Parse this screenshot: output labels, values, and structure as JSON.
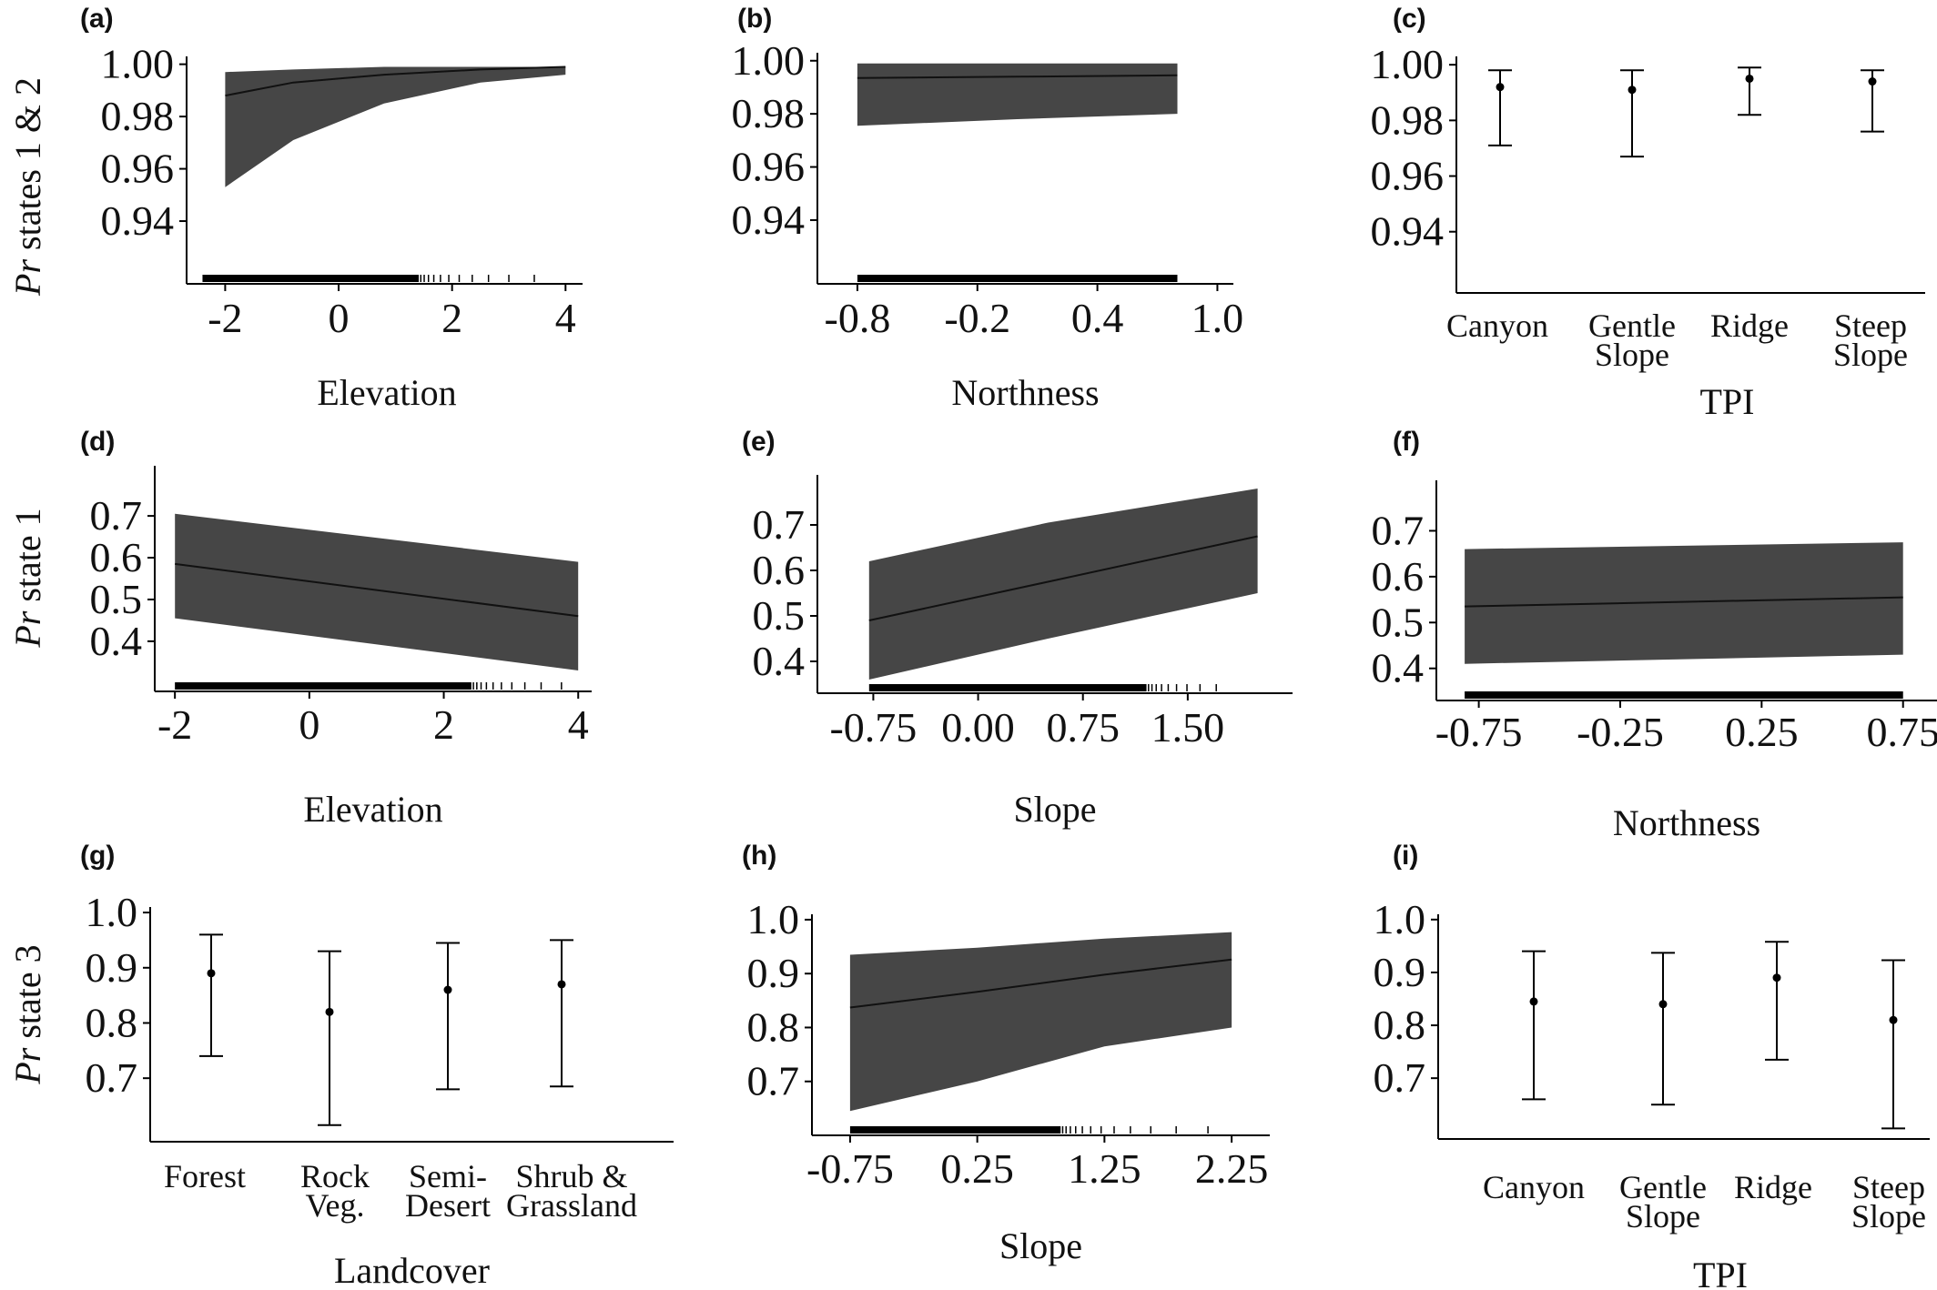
{
  "figure": {
    "row_ylabels": [
      {
        "italic": "Pr",
        "rest": " states 1 & 2"
      },
      {
        "italic": "Pr",
        "rest": " state 1"
      },
      {
        "italic": "Pr",
        "rest": " state 3"
      }
    ]
  },
  "chart_data": [
    {
      "panel": "(a)",
      "type": "line",
      "xlabel": "Elevation",
      "xticks": [
        -2,
        0,
        2,
        4
      ],
      "xlim": [
        -2.6,
        4.3
      ],
      "yticks": [
        0.94,
        0.96,
        0.98,
        1.0
      ],
      "ytick_labels": [
        "0.94",
        "0.96",
        "0.98",
        "1.00"
      ],
      "ylim": [
        0.916,
        1.003
      ],
      "series": [
        {
          "x": [
            -2.0,
            -0.8,
            0.8,
            2.5,
            4.0
          ],
          "y": [
            0.988,
            0.993,
            0.996,
            0.998,
            0.999
          ],
          "lower": [
            0.953,
            0.971,
            0.985,
            0.993,
            0.996
          ],
          "upper": [
            0.997,
            0.998,
            0.999,
            0.999,
            0.999
          ]
        }
      ],
      "rug": {
        "range": [
          -2.4,
          3.8
        ],
        "sparse_from": 1.4
      }
    },
    {
      "panel": "(b)",
      "type": "line",
      "xlabel": "Northness",
      "xticks": [
        -0.8,
        -0.2,
        0.4,
        1.0
      ],
      "xtick_labels": [
        "-0.8",
        "-0.2",
        "0.4",
        "1.0"
      ],
      "xlim": [
        -1.0,
        1.08
      ],
      "yticks": [
        0.94,
        0.96,
        0.98,
        1.0
      ],
      "ytick_labels": [
        "0.94",
        "0.96",
        "0.98",
        "1.00"
      ],
      "ylim": [
        0.916,
        1.003
      ],
      "series": [
        {
          "x": [
            -0.8,
            0.0,
            0.8
          ],
          "y": [
            0.9935,
            0.994,
            0.9945
          ],
          "lower": [
            0.9755,
            0.978,
            0.98
          ],
          "upper": [
            0.999,
            0.999,
            0.999
          ]
        }
      ],
      "rug": {
        "range": [
          -0.8,
          0.8
        ]
      }
    },
    {
      "panel": "(c)",
      "type": "errorbar",
      "xlabel": "TPI",
      "categories": [
        "Canyon",
        "Gentle Slope",
        "Ridge",
        "Steep Slope"
      ],
      "yticks": [
        0.94,
        0.96,
        0.98,
        1.0
      ],
      "ytick_labels": [
        "0.94",
        "0.96",
        "0.98",
        "1.00"
      ],
      "ylim": [
        0.918,
        1.003
      ],
      "values": [
        0.992,
        0.991,
        0.995,
        0.994
      ],
      "lower": [
        0.971,
        0.967,
        0.982,
        0.976
      ],
      "upper": [
        0.998,
        0.998,
        0.999,
        0.998
      ]
    },
    {
      "panel": "(d)",
      "type": "line",
      "xlabel": "Elevation",
      "xticks": [
        -2,
        0,
        2,
        4
      ],
      "xlim": [
        -2.3,
        4.2
      ],
      "yticks": [
        0.4,
        0.5,
        0.6,
        0.7
      ],
      "ytick_labels": [
        "0.4",
        "0.5",
        "0.6",
        "0.7"
      ],
      "ylim": [
        0.28,
        0.82
      ],
      "series": [
        {
          "x": [
            -2.0,
            4.0
          ],
          "y": [
            0.585,
            0.46
          ],
          "lower": [
            0.455,
            0.33
          ],
          "upper": [
            0.705,
            0.59
          ]
        }
      ],
      "rug": {
        "range": [
          -2.0,
          4.0
        ],
        "sparse_from": 2.4
      }
    },
    {
      "panel": "(e)",
      "type": "line",
      "xlabel": "Slope",
      "xticks": [
        -0.75,
        0.0,
        0.75,
        1.5
      ],
      "xtick_labels": [
        "-0.75",
        "0.00",
        "0.75",
        "1.50"
      ],
      "xlim": [
        -1.15,
        2.25
      ],
      "yticks": [
        0.4,
        0.5,
        0.6,
        0.7
      ],
      "ytick_labels": [
        "0.4",
        "0.5",
        "0.6",
        "0.7"
      ],
      "ylim": [
        0.33,
        0.81
      ],
      "series": [
        {
          "x": [
            -0.78,
            0.5,
            2.0
          ],
          "y": [
            0.49,
            0.575,
            0.675
          ],
          "lower": [
            0.36,
            0.45,
            0.55
          ],
          "upper": [
            0.62,
            0.705,
            0.78
          ]
        }
      ],
      "rug": {
        "range": [
          -0.78,
          1.8
        ],
        "sparse_from": 1.2
      }
    },
    {
      "panel": "(f)",
      "type": "line",
      "xlabel": "Northness",
      "xticks": [
        -0.75,
        -0.25,
        0.25,
        0.75
      ],
      "xtick_labels": [
        "-0.75",
        "-0.25",
        "0.25",
        "0.75"
      ],
      "xlim": [
        -0.9,
        0.87
      ],
      "yticks": [
        0.4,
        0.5,
        0.6,
        0.7
      ],
      "ytick_labels": [
        "0.4",
        "0.5",
        "0.6",
        "0.7"
      ],
      "ylim": [
        0.33,
        0.81
      ],
      "series": [
        {
          "x": [
            -0.8,
            0.75
          ],
          "y": [
            0.535,
            0.555
          ],
          "lower": [
            0.41,
            0.43
          ],
          "upper": [
            0.66,
            0.675
          ]
        }
      ],
      "rug": {
        "range": [
          -0.8,
          0.75
        ]
      }
    },
    {
      "panel": "(g)",
      "type": "errorbar",
      "xlabel": "Landcover",
      "categories": [
        "Forest",
        "Rock Veg.",
        "Semi-Desert",
        "Shrub & Grassland"
      ],
      "yticks": [
        0.7,
        0.8,
        0.9,
        1.0
      ],
      "ytick_labels": [
        "0.7",
        "0.8",
        "0.9",
        "1.0"
      ],
      "ylim": [
        0.585,
        1.01
      ],
      "values": [
        0.89,
        0.82,
        0.86,
        0.87
      ],
      "lower": [
        0.74,
        0.615,
        0.68,
        0.685
      ],
      "upper": [
        0.96,
        0.93,
        0.945,
        0.95
      ]
    },
    {
      "panel": "(h)",
      "type": "line",
      "xlabel": "Slope",
      "xticks": [
        -0.75,
        0.25,
        1.25,
        2.25
      ],
      "xtick_labels": [
        "-0.75",
        "0.25",
        "1.25",
        "2.25"
      ],
      "xlim": [
        -1.05,
        2.55
      ],
      "yticks": [
        0.7,
        0.8,
        0.9,
        1.0
      ],
      "ytick_labels": [
        "0.7",
        "0.8",
        "0.9",
        "1.0"
      ],
      "ylim": [
        0.6,
        1.01
      ],
      "series": [
        {
          "x": [
            -0.75,
            0.25,
            1.25,
            2.25
          ],
          "y": [
            0.837,
            0.866,
            0.898,
            0.926
          ],
          "lower": [
            0.645,
            0.7,
            0.765,
            0.8
          ],
          "upper": [
            0.935,
            0.948,
            0.965,
            0.977
          ]
        }
      ],
      "rug": {
        "range": [
          -0.75,
          2.25
        ],
        "sparse_from": 0.9
      }
    },
    {
      "panel": "(i)",
      "type": "errorbar",
      "xlabel": "TPI",
      "categories": [
        "Canyon",
        "Gentle Slope",
        "Ridge",
        "Steep Slope"
      ],
      "yticks": [
        0.7,
        0.8,
        0.9,
        1.0
      ],
      "ytick_labels": [
        "0.7",
        "0.8",
        "0.9",
        "1.0"
      ],
      "ylim": [
        0.585,
        1.01
      ],
      "values": [
        0.845,
        0.84,
        0.89,
        0.81
      ],
      "lower": [
        0.66,
        0.65,
        0.735,
        0.605
      ],
      "upper": [
        0.94,
        0.937,
        0.958,
        0.923
      ]
    }
  ]
}
